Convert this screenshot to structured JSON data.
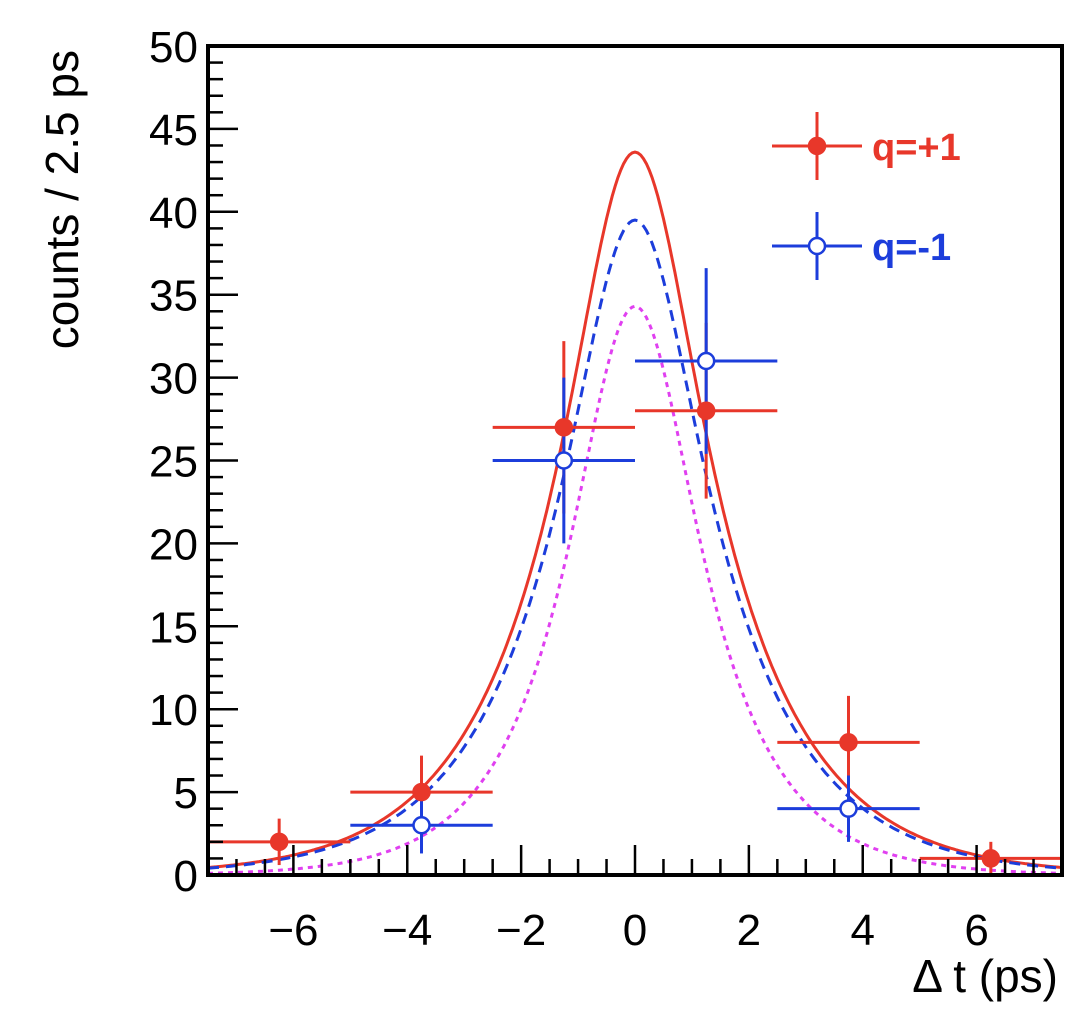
{
  "chart_data": {
    "type": "scatter",
    "title": "",
    "xlabel": "Δ t (ps)",
    "ylabel": "counts / 2.5 ps",
    "xlim": [
      -7.5,
      7.5
    ],
    "ylim": [
      0,
      50
    ],
    "x_ticks": [
      -6,
      -4,
      -2,
      0,
      2,
      4,
      6
    ],
    "x_tick_labels": [
      "−6",
      "−4",
      "−2",
      "0",
      "2",
      "4",
      "6"
    ],
    "y_ticks": [
      0,
      5,
      10,
      15,
      20,
      25,
      30,
      35,
      40,
      45,
      50
    ],
    "y_tick_labels": [
      "0",
      "5",
      "10",
      "15",
      "20",
      "25",
      "30",
      "35",
      "40",
      "45",
      "50"
    ],
    "grid": false,
    "legend_position": "top-right",
    "series": [
      {
        "name": "q=+1",
        "color": "#e8372a",
        "marker": "filled-circle",
        "points": [
          {
            "x": -6.25,
            "y": 2,
            "xerr": 1.25,
            "yerr": 1.4
          },
          {
            "x": -3.75,
            "y": 5,
            "xerr": 1.25,
            "yerr": 2.2
          },
          {
            "x": -1.25,
            "y": 27,
            "xerr": 1.25,
            "yerr": 5.2
          },
          {
            "x": 1.25,
            "y": 28,
            "xerr": 1.25,
            "yerr": 5.3
          },
          {
            "x": 3.75,
            "y": 8,
            "xerr": 1.25,
            "yerr": 2.8
          },
          {
            "x": 6.25,
            "y": 1,
            "xerr": 1.25,
            "yerr": 1.0
          }
        ]
      },
      {
        "name": "q=-1",
        "color": "#1c3ddb",
        "marker": "open-circle",
        "points": [
          {
            "x": -3.75,
            "y": 3,
            "xerr": 1.25,
            "yerr": 1.7
          },
          {
            "x": -1.25,
            "y": 25,
            "xerr": 1.25,
            "yerr": 5.0
          },
          {
            "x": 1.25,
            "y": 31,
            "xerr": 1.25,
            "yerr": 5.6
          },
          {
            "x": 3.75,
            "y": 4,
            "xerr": 1.25,
            "yerr": 2.0
          }
        ]
      }
    ],
    "curves": [
      {
        "name": "fit-q-plus",
        "color": "#e8372a",
        "style": "solid",
        "peak": 43.6,
        "tau": 1.53,
        "sigma": 0.55
      },
      {
        "name": "fit-q-minus",
        "color": "#1c3ddb",
        "style": "dashed",
        "peak": 39.5,
        "tau": 1.53,
        "sigma": 0.55
      },
      {
        "name": "fit-component",
        "color": "#e040f0",
        "style": "dotted",
        "peak": 34.3,
        "tau": 1.2,
        "sigma": 0.55
      }
    ]
  }
}
